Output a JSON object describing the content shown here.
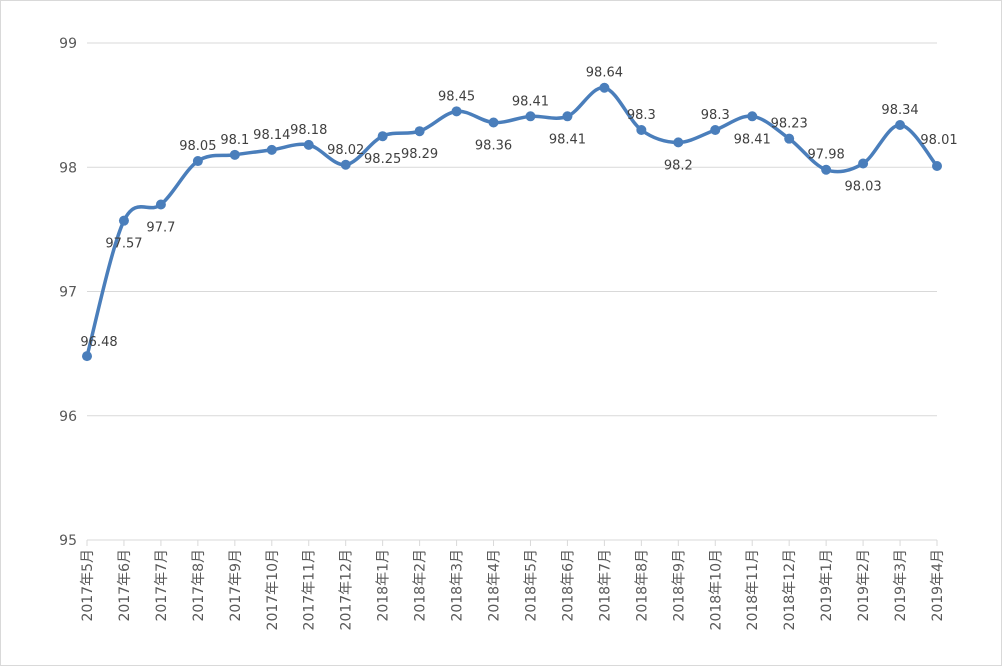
{
  "chart_data": {
    "type": "line",
    "title": "",
    "xlabel": "",
    "ylabel": "",
    "ylim": [
      95,
      99
    ],
    "yticks": [
      95,
      96,
      97,
      98,
      99
    ],
    "grid": true,
    "smooth": true,
    "line_color": "#4a7ebb",
    "grid_color": "#d9d9d9",
    "categories": [
      "2017年5月",
      "2017年6月",
      "2017年7月",
      "2017年8月",
      "2017年9月",
      "2017年10月",
      "2017年11月",
      "2017年12月",
      "2018年1月",
      "2018年2月",
      "2018年3月",
      "2018年4月",
      "2018年5月",
      "2018年6月",
      "2018年7月",
      "2018年8月",
      "2018年9月",
      "2018年10月",
      "2018年11月",
      "2018年12月",
      "2019年1月",
      "2019年2月",
      "2019年3月",
      "2019年4月"
    ],
    "values": [
      96.48,
      97.57,
      97.7,
      98.05,
      98.1,
      98.14,
      98.18,
      98.02,
      98.25,
      98.29,
      98.45,
      98.36,
      98.41,
      98.41,
      98.64,
      98.3,
      98.2,
      98.3,
      98.41,
      98.23,
      97.98,
      98.03,
      98.34,
      98.01
    ],
    "data_labels": [
      "96.48",
      "97.57",
      "97.7",
      "98.05",
      "98.1",
      "98.14",
      "98.18",
      "98.02",
      "98.25",
      "98.29",
      "98.45",
      "98.36",
      "98.41",
      "98.41",
      "98.64",
      "98.3",
      "98.2",
      "98.3",
      "98.41",
      "98.23",
      "97.98",
      "98.03",
      "98.34",
      "98.01"
    ]
  }
}
